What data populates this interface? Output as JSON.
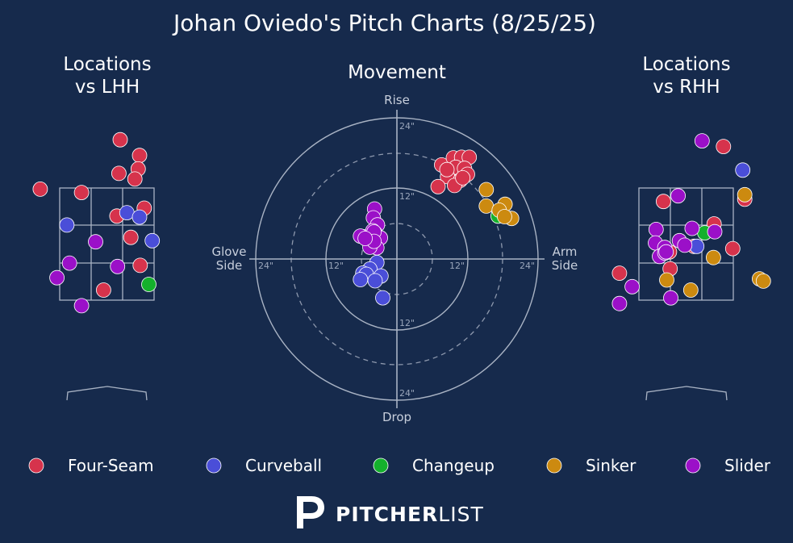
{
  "title": "Johan Oviedo's Pitch Charts (8/25/25)",
  "panels": {
    "lhh_title_line1": "Locations",
    "lhh_title_line2": "vs LHH",
    "movement_title": "Movement",
    "rhh_title_line1": "Locations",
    "rhh_title_line2": "vs RHH"
  },
  "movement_axis": {
    "top": "Rise",
    "bottom": "Drop",
    "left_line1": "Glove",
    "left_line2": "Side",
    "right_line1": "Arm",
    "right_line2": "Side",
    "ring_labels": {
      "outer": "24\"",
      "inner": "12\""
    }
  },
  "colors": {
    "background": "#162a4c",
    "Four-Seam": "#d6334c",
    "Curveball": "#4a4ed8",
    "Changeup": "#14b02c",
    "Sinker": "#cc8a10",
    "Slider": "#9b10c8"
  },
  "legend": [
    "Four-Seam",
    "Curveball",
    "Changeup",
    "Sinker",
    "Slider"
  ],
  "logo": {
    "bold": "PITCHER",
    "light": "LIST"
  },
  "chart_data": [
    {
      "type": "scatter",
      "panel": "locations-vs-lhh",
      "title": "Locations vs LHH",
      "units": "feet, catcher view (x = horizontal from plate center, y = height)",
      "series": [
        {
          "name": "Four-Seam",
          "points": [
            [
              0.2,
              4.36
            ],
            [
              0.49,
              4.08
            ],
            [
              0.47,
              3.84
            ],
            [
              0.18,
              3.76
            ],
            [
              0.42,
              3.66
            ],
            [
              -1.0,
              3.48
            ],
            [
              -0.38,
              3.42
            ],
            [
              0.56,
              3.14
            ],
            [
              0.15,
              3.0
            ],
            [
              0.36,
              2.62
            ],
            [
              0.5,
              2.12
            ],
            [
              -0.05,
              1.68
            ]
          ]
        },
        {
          "name": "Curveball",
          "points": [
            [
              0.3,
              3.06
            ],
            [
              0.49,
              2.98
            ],
            [
              -0.6,
              2.84
            ],
            [
              0.68,
              2.56
            ]
          ]
        },
        {
          "name": "Changeup",
          "points": [
            [
              0.63,
              1.78
            ]
          ]
        },
        {
          "name": "Sinker",
          "points": []
        },
        {
          "name": "Slider",
          "points": [
            [
              -0.17,
              2.54
            ],
            [
              -0.56,
              2.16
            ],
            [
              0.16,
              2.1
            ],
            [
              -0.75,
              1.9
            ],
            [
              -0.38,
              1.4
            ]
          ]
        }
      ]
    },
    {
      "type": "scatter",
      "panel": "movement",
      "title": "Movement",
      "units": "inches (x: negative = glove side, positive = arm side; y: positive = rise)",
      "rings": [
        12,
        24
      ],
      "series": [
        {
          "name": "Four-Seam",
          "points": [
            [
              7.6,
              16.0
            ],
            [
              9.6,
              17.2
            ],
            [
              11.0,
              17.3
            ],
            [
              12.3,
              17.3
            ],
            [
              10.0,
              15.6
            ],
            [
              11.5,
              15.4
            ],
            [
              12.0,
              14.4
            ],
            [
              8.6,
              14.0
            ],
            [
              10.8,
              13.4
            ],
            [
              9.8,
              12.5
            ],
            [
              7.0,
              12.3
            ],
            [
              8.5,
              15.2
            ],
            [
              11.2,
              13.8
            ]
          ]
        },
        {
          "name": "Curveball",
          "points": [
            [
              -3.4,
              -0.6
            ],
            [
              -4.6,
              -1.7
            ],
            [
              -5.8,
              -2.4
            ],
            [
              -5.2,
              -2.6
            ],
            [
              -2.7,
              -2.9
            ],
            [
              -6.2,
              -3.5
            ],
            [
              -3.7,
              -3.7
            ],
            [
              -2.4,
              -6.6
            ]
          ]
        },
        {
          "name": "Changeup",
          "points": [
            [
              17.2,
              7.3
            ]
          ]
        },
        {
          "name": "Sinker",
          "points": [
            [
              15.2,
              11.8
            ],
            [
              18.4,
              9.3
            ],
            [
              15.2,
              9.0
            ],
            [
              17.4,
              8.3
            ],
            [
              19.5,
              6.9
            ],
            [
              18.3,
              7.2
            ]
          ]
        },
        {
          "name": "Slider",
          "points": [
            [
              -3.8,
              8.5
            ],
            [
              -4.0,
              7.0
            ],
            [
              -3.3,
              5.8
            ],
            [
              -5.8,
              3.8
            ],
            [
              -3.7,
              4.4
            ],
            [
              -3.9,
              3.4
            ],
            [
              -2.8,
              3.6
            ],
            [
              -4.3,
              3.0
            ],
            [
              -3.4,
              1.9
            ],
            [
              -4.6,
              2.0
            ],
            [
              -4.1,
              4.8
            ],
            [
              -3.9,
              4.6
            ],
            [
              -3.9,
              3.0
            ],
            [
              -6.2,
              3.9
            ],
            [
              -5.4,
              3.5
            ]
          ]
        }
      ]
    },
    {
      "type": "scatter",
      "panel": "locations-vs-rhh",
      "title": "Locations vs RHH",
      "units": "feet, catcher view (x = horizontal from plate center, y = height)",
      "series": [
        {
          "name": "Four-Seam",
          "points": [
            [
              0.56,
              4.24
            ],
            [
              -0.34,
              3.26
            ],
            [
              0.88,
              3.3
            ],
            [
              0.42,
              2.86
            ],
            [
              0.12,
              2.46
            ],
            [
              -0.25,
              2.36
            ],
            [
              0.7,
              2.42
            ],
            [
              -0.24,
              2.06
            ],
            [
              -1.0,
              1.98
            ]
          ]
        },
        {
          "name": "Curveball",
          "points": [
            [
              0.85,
              3.82
            ],
            [
              0.16,
              2.46
            ]
          ]
        },
        {
          "name": "Changeup",
          "points": [
            [
              0.28,
              2.7
            ]
          ]
        },
        {
          "name": "Sinker",
          "points": [
            [
              0.88,
              3.38
            ],
            [
              0.41,
              2.26
            ],
            [
              -0.29,
              1.86
            ],
            [
              0.07,
              1.68
            ],
            [
              1.1,
              1.88
            ],
            [
              1.16,
              1.84
            ]
          ]
        },
        {
          "name": "Slider",
          "points": [
            [
              0.24,
              4.34
            ],
            [
              -0.12,
              3.36
            ],
            [
              -0.45,
              2.76
            ],
            [
              0.09,
              2.78
            ],
            [
              0.43,
              2.72
            ],
            [
              -0.46,
              2.52
            ],
            [
              -0.1,
              2.56
            ],
            [
              -0.32,
              2.44
            ],
            [
              -0.02,
              2.48
            ],
            [
              -0.4,
              2.28
            ],
            [
              -0.32,
              2.34
            ],
            [
              -0.3,
              2.36
            ],
            [
              -0.81,
              1.74
            ],
            [
              -0.23,
              1.54
            ],
            [
              -1.0,
              1.44
            ]
          ]
        }
      ]
    }
  ]
}
